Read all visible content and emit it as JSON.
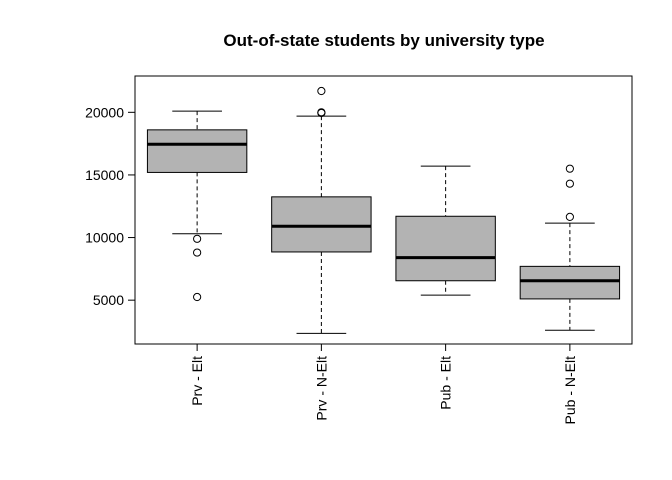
{
  "chart_data": {
    "type": "boxplot",
    "title": "Out-of-state students by university type",
    "xlabel": "",
    "ylabel": "",
    "categories": [
      "Prv - Elt",
      "Prv - N-Elt",
      "Pub - Elt",
      "Pub - N-Elt"
    ],
    "yticks": [
      5000,
      10000,
      15000,
      20000
    ],
    "yrange": [
      1500,
      22900
    ],
    "box_fill": "#b3b3b3",
    "grid": false,
    "boxes": [
      {
        "category": "Prv - Elt",
        "whisker_low": 10300,
        "q1": 15200,
        "median": 17450,
        "q3": 18600,
        "whisker_high": 20100,
        "outliers": [
          9900,
          8800,
          5250
        ]
      },
      {
        "category": "Prv - N-Elt",
        "whisker_low": 2350,
        "q1": 8850,
        "median": 10900,
        "q3": 13250,
        "whisker_high": 19700,
        "outliers": [
          21700,
          20000,
          19950
        ]
      },
      {
        "category": "Pub - Elt",
        "whisker_low": 5400,
        "q1": 6550,
        "median": 8400,
        "q3": 11700,
        "whisker_high": 15700,
        "outliers": []
      },
      {
        "category": "Pub - N-Elt",
        "whisker_low": 2600,
        "q1": 5100,
        "median": 6550,
        "q3": 7700,
        "whisker_high": 11150,
        "outliers": [
          15500,
          14300,
          11650
        ]
      }
    ]
  }
}
